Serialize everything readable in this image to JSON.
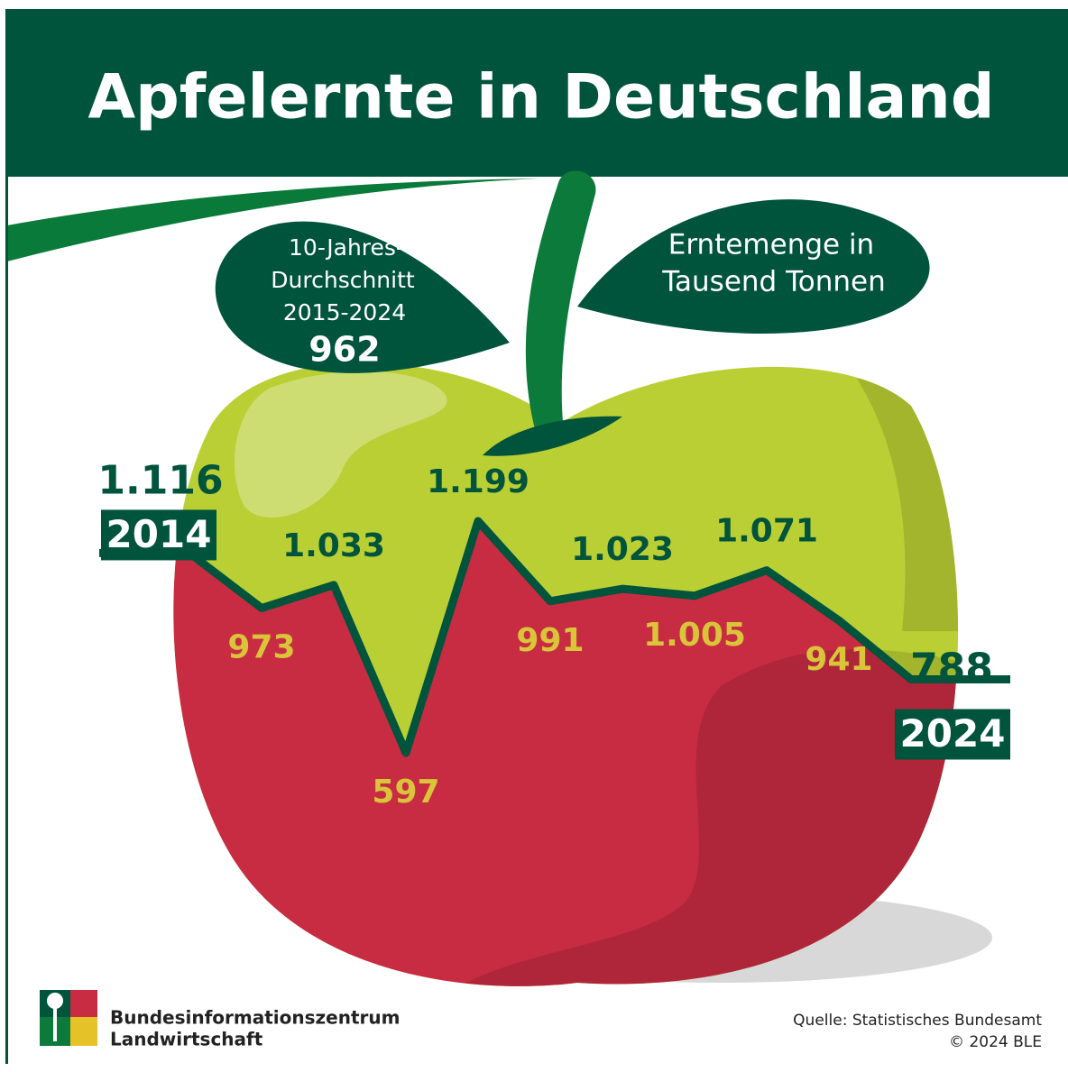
{
  "chart_data": {
    "type": "line",
    "title": "Apfelernte in Deutschland",
    "unit_label": [
      "Erntemenge in",
      "Tausend Tonnen"
    ],
    "average": {
      "label": [
        "10-Jahres-",
        "Durchschnitt",
        "2015-2024"
      ],
      "value": 962
    },
    "categories": [
      "2014",
      null,
      null,
      null,
      null,
      null,
      null,
      null,
      null,
      null,
      "2024"
    ],
    "values": [
      1116,
      973,
      1033,
      597,
      1199,
      991,
      1023,
      1005,
      1071,
      941,
      788
    ],
    "value_labels": [
      "1.116",
      "973",
      "1.033",
      "597",
      "1.199",
      "991",
      "1.023",
      "1.005",
      "1.071",
      "941",
      "788"
    ],
    "line_color": "#00543c",
    "upper_color": "#b9cf34",
    "lower_color": "#c82c42",
    "source": [
      "Quelle: Statistisches Bundesamt",
      "© 2024 BLE"
    ],
    "publisher": [
      "Bundesinformationszentrum",
      "Landwirtschaft"
    ]
  }
}
